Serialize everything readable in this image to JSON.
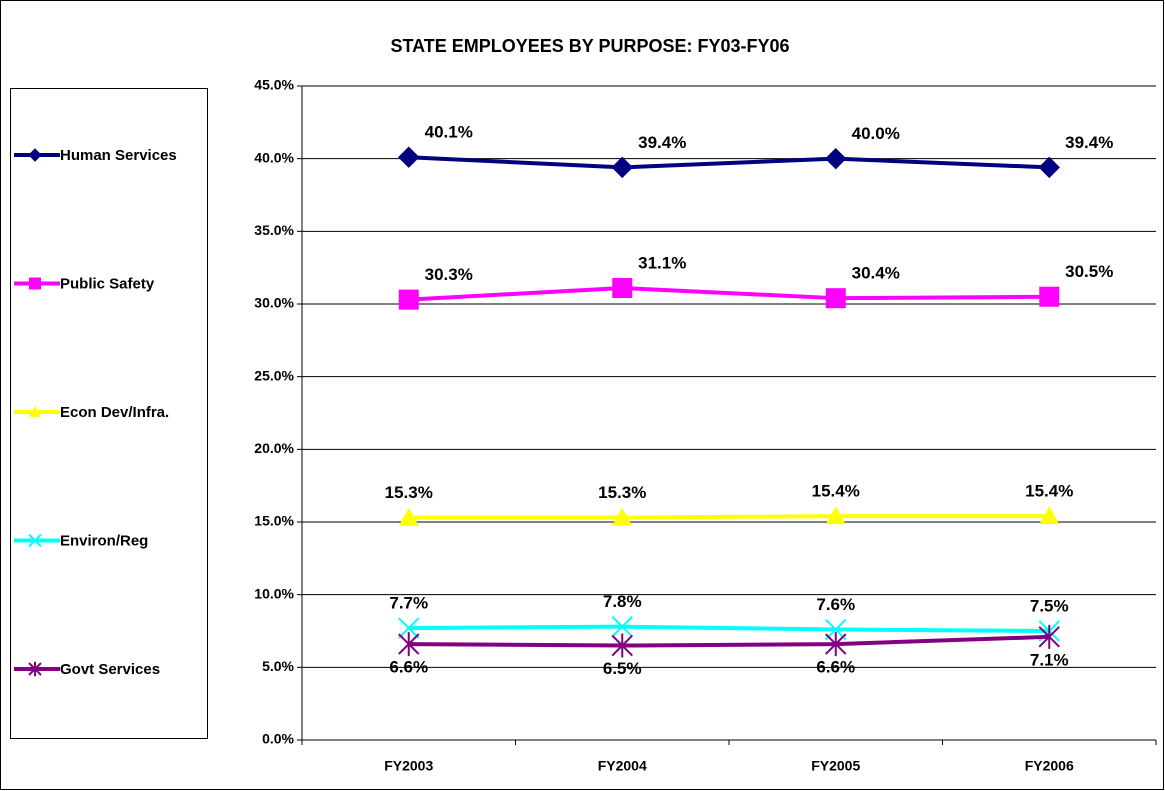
{
  "chart_data": {
    "type": "line",
    "title": "STATE EMPLOYEES BY PURPOSE: FY03-FY06",
    "categories": [
      "FY2003",
      "FY2004",
      "FY2005",
      "FY2006"
    ],
    "ylim": [
      0,
      45
    ],
    "yticks": [
      {
        "value": 0,
        "label": "0.0%"
      },
      {
        "value": 5,
        "label": "5.0%"
      },
      {
        "value": 10,
        "label": "10.0%"
      },
      {
        "value": 15,
        "label": "15.0%"
      },
      {
        "value": 20,
        "label": "20.0%"
      },
      {
        "value": 25,
        "label": "25.0%"
      },
      {
        "value": 30,
        "label": "30.0%"
      },
      {
        "value": 35,
        "label": "35.0%"
      },
      {
        "value": 40,
        "label": "40.0%"
      },
      {
        "value": 45,
        "label": "45.0%"
      }
    ],
    "grid": true,
    "legend": "left",
    "series": [
      {
        "name": "Human Services",
        "color": "#000080",
        "marker": "diamond",
        "values": [
          40.1,
          39.4,
          40.0,
          39.4
        ],
        "value_labels": [
          "40.1%",
          "39.4%",
          "40.0%",
          "39.4%"
        ]
      },
      {
        "name": "Public Safety",
        "color": "#ff00ff",
        "marker": "square",
        "values": [
          30.3,
          31.1,
          30.4,
          30.5
        ],
        "value_labels": [
          "30.3%",
          "31.1%",
          "30.4%",
          "30.5%"
        ]
      },
      {
        "name": "Econ Dev/Infra.",
        "color": "#ffff00",
        "marker": "triangle",
        "values": [
          15.3,
          15.3,
          15.4,
          15.4
        ],
        "value_labels": [
          "15.3%",
          "15.3%",
          "15.4%",
          "15.4%"
        ]
      },
      {
        "name": "Environ/Reg",
        "color": "#00ffff",
        "marker": "x",
        "values": [
          7.7,
          7.8,
          7.6,
          7.5
        ],
        "value_labels": [
          "7.7%",
          "7.8%",
          "7.6%",
          "7.5%"
        ]
      },
      {
        "name": "Govt Services",
        "color": "#800080",
        "marker": "asterisk",
        "values": [
          6.6,
          6.5,
          6.6,
          7.1
        ],
        "value_labels": [
          "6.6%",
          "6.5%",
          "6.6%",
          "7.1%"
        ]
      }
    ]
  }
}
